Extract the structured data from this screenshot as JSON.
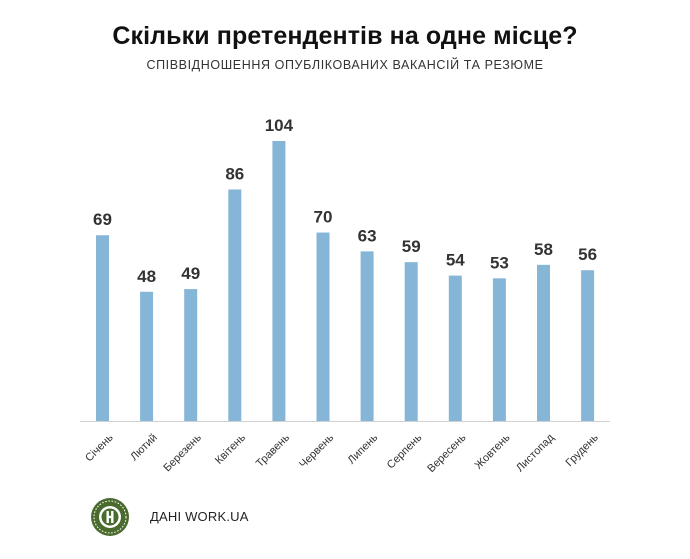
{
  "header": {
    "title": "Скільки претендентів на одне місце?",
    "subtitle": "СПІВВІДНОШЕННЯ ОПУБЛІКОВАНИХ ВАКАНСІЙ ТА РЕЗЮМЕ"
  },
  "footer": {
    "source_text": "ДАНІ WORK.UA",
    "logo_icon": "workua-logo-icon"
  },
  "colors": {
    "bar": "#86b6d7",
    "value_label": "#333333",
    "axis": "#d0d0d0",
    "tick_label": "#333333",
    "logo_green": "#4a6b2e"
  },
  "chart_data": {
    "type": "bar",
    "title": "Скільки претендентів на одне місце?",
    "subtitle": "СПІВВІДНОШЕННЯ ОПУБЛІКОВАНИХ ВАКАНСІЙ ТА РЕЗЮМЕ",
    "categories": [
      "Січень",
      "Лютий",
      "Березень",
      "Квітень",
      "Травень",
      "Червень",
      "Липень",
      "Серпень",
      "Вересень",
      "Жовтень",
      "Листопад",
      "Грудень"
    ],
    "values": [
      69,
      48,
      49,
      86,
      104,
      70,
      63,
      59,
      54,
      53,
      58,
      56
    ],
    "xlabel": "",
    "ylabel": "",
    "ylim": [
      0,
      104
    ],
    "grid": false,
    "data_labels": true,
    "tick_label_rotation": "diagonal"
  }
}
